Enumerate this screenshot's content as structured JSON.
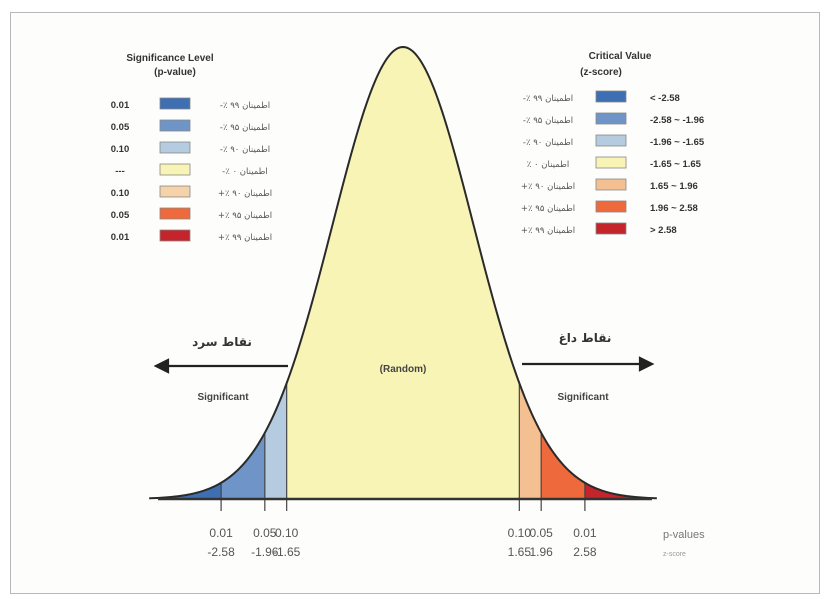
{
  "chart_data": {
    "type": "area",
    "title": "",
    "xlabel": "p-values",
    "xlabel_sub": "z-score",
    "ylabel": "",
    "xlim": [
      -3.6,
      3.6
    ],
    "curve": "normal distribution",
    "regions": [
      {
        "from": -3.6,
        "to": -2.58,
        "color": "#3f6fb3"
      },
      {
        "from": -2.58,
        "to": -1.96,
        "color": "#6f95c8"
      },
      {
        "from": -1.96,
        "to": -1.65,
        "color": "#b4cbe0"
      },
      {
        "from": -1.65,
        "to": 1.65,
        "color": "#f8f4b6"
      },
      {
        "from": 1.65,
        "to": 1.96,
        "color": "#f5c091"
      },
      {
        "from": 1.96,
        "to": 2.58,
        "color": "#ee6a3c"
      },
      {
        "from": 2.58,
        "to": 3.6,
        "color": "#c4242b"
      }
    ],
    "ticks": [
      {
        "z": -2.58,
        "p": "0.01",
        "zlabel": "-2.58"
      },
      {
        "z": -1.96,
        "p": "0.05",
        "zlabel": "-1.96"
      },
      {
        "z": -1.65,
        "p": "0.10",
        "zlabel": "-1.65"
      },
      {
        "z": 1.65,
        "p": "0.10",
        "zlabel": "1.65"
      },
      {
        "z": 1.96,
        "p": "0.05",
        "zlabel": "1.96"
      },
      {
        "z": 2.58,
        "p": "0.01",
        "zlabel": "2.58"
      }
    ],
    "annotations": {
      "center": "(Random)",
      "left_region": "Significant",
      "right_region": "Significant",
      "left_arabic": "نقاط سرد",
      "right_arabic": "نقاط داغ"
    },
    "legend_left": {
      "title": "Significance Level",
      "subtitle": "(p-value)",
      "rows": [
        {
          "value": "0.01",
          "color": "#3f6fb3",
          "note": "-٪ اطمینان ۹۹"
        },
        {
          "value": "0.05",
          "color": "#6f95c8",
          "note": "-٪ اطمینان ۹۵"
        },
        {
          "value": "0.10",
          "color": "#b4cbe0",
          "note": "-٪ اطمینان ۹۰"
        },
        {
          "value": "---",
          "color": "#f8f4b6",
          "note": "-٪ اطمینان ۰"
        },
        {
          "value": "0.10",
          "color": "#f5d2a8",
          "note": "+٪ اطمینان ۹۰"
        },
        {
          "value": "0.05",
          "color": "#ee6a3c",
          "note": "+٪ اطمینان ۹۵"
        },
        {
          "value": "0.01",
          "color": "#c4242b",
          "note": "+٪ اطمینان ۹۹"
        }
      ]
    },
    "legend_right": {
      "title": "Critical Value",
      "subtitle": "(z-score)",
      "rows": [
        {
          "note": "-٪ اطمینان ۹۹",
          "color": "#3f6fb3",
          "value": "< -2.58"
        },
        {
          "note": "-٪ اطمینان ۹۵",
          "color": "#6f95c8",
          "value": "-2.58 ~ -1.96"
        },
        {
          "note": "-٪ اطمینان ۹۰",
          "color": "#b4cbe0",
          "value": "-1.96 ~ -1.65"
        },
        {
          "note": "٪ اطمینان ۰",
          "color": "#f8f4b6",
          "value": "-1.65 ~ 1.65"
        },
        {
          "note": "+٪ اطمینان ۹۰",
          "color": "#f5c091",
          "value": "1.65 ~ 1.96"
        },
        {
          "note": "+٪ اطمینان ۹۵",
          "color": "#ee6a3c",
          "value": "1.96 ~ 2.58"
        },
        {
          "note": "+٪ اطمینان ۹۹",
          "color": "#c4242b",
          "value": "> 2.58"
        }
      ]
    }
  }
}
